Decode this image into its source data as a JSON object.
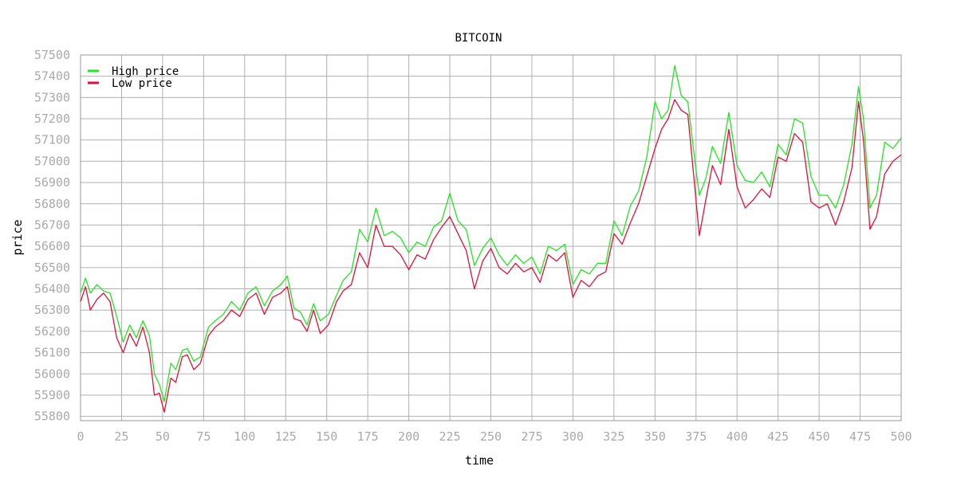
{
  "chart_data": {
    "type": "line",
    "title": "BITCOIN",
    "xlabel": "time",
    "ylabel": "price",
    "xlim": [
      0,
      500
    ],
    "ylim": [
      55780,
      57500
    ],
    "x_ticks": [
      0,
      25,
      50,
      75,
      100,
      125,
      150,
      175,
      200,
      225,
      250,
      275,
      300,
      325,
      350,
      375,
      400,
      425,
      450,
      475,
      500
    ],
    "y_ticks": [
      55800,
      55900,
      56000,
      56100,
      56200,
      56300,
      56400,
      56500,
      56600,
      56700,
      56800,
      56900,
      57000,
      57100,
      57200,
      57300,
      57400,
      57500
    ],
    "grid": true,
    "legend_position": "top-left",
    "x": [
      0,
      3,
      6,
      10,
      14,
      18,
      22,
      26,
      30,
      34,
      38,
      42,
      45,
      48,
      51,
      55,
      58,
      62,
      65,
      69,
      73,
      78,
      82,
      87,
      92,
      97,
      102,
      107,
      112,
      117,
      122,
      126,
      130,
      134,
      138,
      142,
      146,
      151,
      156,
      160,
      165,
      170,
      175,
      180,
      185,
      190,
      195,
      200,
      205,
      210,
      215,
      220,
      225,
      230,
      235,
      240,
      245,
      250,
      255,
      260,
      265,
      270,
      275,
      280,
      285,
      290,
      295,
      300,
      305,
      310,
      315,
      320,
      325,
      330,
      335,
      340,
      345,
      350,
      354,
      358,
      362,
      366,
      370,
      374,
      377,
      381,
      385,
      390,
      395,
      400,
      405,
      410,
      415,
      420,
      425,
      430,
      435,
      440,
      445,
      450,
      455,
      460,
      465,
      470,
      474,
      477,
      481,
      485,
      490,
      495,
      500
    ],
    "series": [
      {
        "name": "High price",
        "color": "#22e622",
        "values": [
          56380,
          56450,
          56380,
          56420,
          56390,
          56380,
          56270,
          56150,
          56230,
          56170,
          56250,
          56180,
          56000,
          55950,
          55870,
          56050,
          56020,
          56110,
          56120,
          56060,
          56080,
          56220,
          56250,
          56280,
          56340,
          56300,
          56380,
          56410,
          56320,
          56390,
          56420,
          56460,
          56310,
          56290,
          56230,
          56330,
          56250,
          56280,
          56370,
          56440,
          56480,
          56680,
          56620,
          56780,
          56650,
          56670,
          56640,
          56570,
          56620,
          56600,
          56690,
          56720,
          56850,
          56720,
          56680,
          56510,
          56590,
          56640,
          56560,
          56510,
          56560,
          56520,
          56550,
          56470,
          56600,
          56580,
          56610,
          56420,
          56490,
          56470,
          56520,
          56520,
          56720,
          56650,
          56790,
          56860,
          57020,
          57280,
          57200,
          57240,
          57450,
          57310,
          57280,
          57020,
          56840,
          56920,
          57070,
          56990,
          57230,
          56980,
          56910,
          56900,
          56950,
          56880,
          57080,
          57030,
          57200,
          57180,
          56930,
          56840,
          56840,
          56780,
          56890,
          57080,
          57350,
          57200,
          56780,
          56840,
          57090,
          57060,
          57110
        ]
      },
      {
        "name": "Low price",
        "color": "#e0103a",
        "values": [
          56340,
          56410,
          56300,
          56350,
          56380,
          56340,
          56170,
          56100,
          56190,
          56130,
          56220,
          56100,
          55900,
          55910,
          55820,
          55980,
          55960,
          56080,
          56090,
          56020,
          56050,
          56180,
          56220,
          56250,
          56300,
          56270,
          56350,
          56380,
          56280,
          56360,
          56380,
          56410,
          56260,
          56250,
          56200,
          56300,
          56190,
          56230,
          56340,
          56390,
          56420,
          56570,
          56500,
          56700,
          56600,
          56600,
          56560,
          56490,
          56560,
          56540,
          56630,
          56690,
          56740,
          56660,
          56580,
          56400,
          56530,
          56590,
          56500,
          56470,
          56520,
          56480,
          56500,
          56430,
          56560,
          56530,
          56570,
          56360,
          56440,
          56410,
          56460,
          56480,
          56660,
          56610,
          56710,
          56800,
          56930,
          57060,
          57150,
          57200,
          57290,
          57240,
          57220,
          56900,
          56650,
          56820,
          56980,
          56890,
          57150,
          56880,
          56780,
          56820,
          56870,
          56830,
          57020,
          57000,
          57130,
          57090,
          56810,
          56780,
          56800,
          56700,
          56810,
          56970,
          57280,
          57100,
          56680,
          56740,
          56940,
          57000,
          57030
        ]
      }
    ]
  }
}
